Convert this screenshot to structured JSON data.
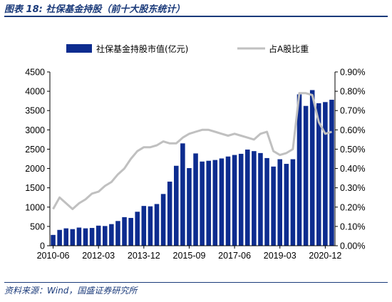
{
  "figure_title": "图表 18:  社保基金持股（前十大股东统计）",
  "source_note": "资料来源：Wind，国盛证券研究所",
  "colors": {
    "bar": "#0d2c8f",
    "line": "#c0c0c0",
    "title": "#1a3a7a"
  },
  "chart_data": {
    "type": "bar",
    "title": "",
    "legend_position": "top",
    "grid": false,
    "series": [
      {
        "name": "社保基金持股市值(亿元)",
        "type": "bar",
        "axis": "left",
        "values": [
          280,
          410,
          450,
          430,
          470,
          450,
          460,
          520,
          510,
          560,
          640,
          740,
          720,
          880,
          1030,
          1020,
          1080,
          1340,
          1660,
          2070,
          2650,
          2010,
          2390,
          2180,
          2200,
          2220,
          2260,
          2310,
          2350,
          2380,
          2490,
          2450,
          2400,
          2270,
          2050,
          2240,
          2120,
          2240,
          3920,
          3620,
          4030,
          3690,
          3720,
          3780
        ]
      },
      {
        "name": "占A股比重",
        "type": "line",
        "axis": "right",
        "values": [
          0.19,
          0.25,
          0.22,
          0.19,
          0.22,
          0.24,
          0.27,
          0.28,
          0.31,
          0.33,
          0.37,
          0.4,
          0.45,
          0.49,
          0.51,
          0.51,
          0.52,
          0.54,
          0.53,
          0.53,
          0.56,
          0.58,
          0.59,
          0.6,
          0.6,
          0.59,
          0.58,
          0.57,
          0.58,
          0.57,
          0.56,
          0.55,
          0.58,
          0.59,
          0.49,
          0.47,
          0.48,
          0.5,
          0.79,
          0.79,
          0.78,
          0.64,
          0.58,
          0.59
        ]
      }
    ],
    "x_tick_labels": [
      "2010-06",
      "2012-03",
      "2013-12",
      "2015-09",
      "2017-06",
      "2019-03",
      "2020-12"
    ],
    "x_tick_indices": [
      0,
      7,
      14,
      21,
      28,
      35,
      42
    ],
    "y_left": {
      "min": 0,
      "max": 4500,
      "ticks": [
        0,
        500,
        1000,
        1500,
        2000,
        2500,
        3000,
        3500,
        4000,
        4500
      ]
    },
    "y_right": {
      "min": 0,
      "max": 0.9,
      "tick_labels": [
        "0.00%",
        "0.10%",
        "0.20%",
        "0.30%",
        "0.40%",
        "0.50%",
        "0.60%",
        "0.70%",
        "0.80%",
        "0.90%"
      ]
    }
  }
}
